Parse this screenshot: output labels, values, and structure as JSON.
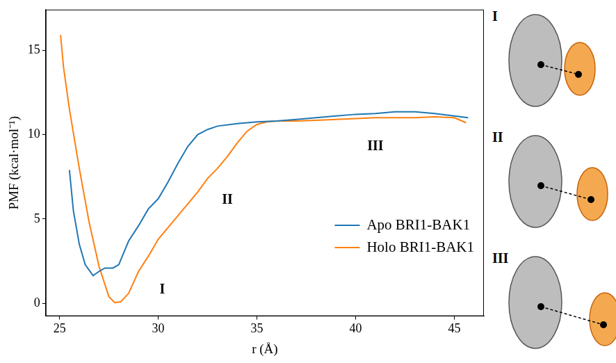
{
  "chart_data": {
    "type": "line",
    "x_label": "r (Å)",
    "y_label": "PMF (kcal·mol⁻¹)",
    "xlim": [
      24.3,
      46.5
    ],
    "xticks": [
      25,
      30,
      35,
      40,
      45
    ],
    "ylim": [
      -0.75,
      17.4
    ],
    "yticks": [
      0,
      5,
      10,
      15
    ],
    "grid": false,
    "legend": "center right",
    "series": [
      {
        "name": "Apo BRI1-BAK1",
        "color": "#1f77b4",
        "x": [
          25.5,
          25.7,
          26.0,
          26.3,
          26.7,
          27.0,
          27.3,
          27.7,
          28.0,
          28.5,
          29.0,
          29.5,
          30.0,
          30.5,
          31.0,
          31.5,
          32.0,
          32.5,
          33.0,
          34.0,
          35.0,
          36.0,
          37.0,
          38.0,
          39.0,
          40.0,
          41.0,
          42.0,
          43.0,
          44.0,
          45.0,
          45.7
        ],
        "values": [
          7.9,
          5.5,
          3.5,
          2.3,
          1.65,
          1.9,
          2.1,
          2.1,
          2.3,
          3.7,
          4.6,
          5.6,
          6.2,
          7.2,
          8.3,
          9.3,
          10.0,
          10.3,
          10.5,
          10.65,
          10.75,
          10.8,
          10.9,
          11.0,
          11.1,
          11.2,
          11.25,
          11.35,
          11.35,
          11.25,
          11.1,
          11.0
        ]
      },
      {
        "name": "Holo BRI1-BAK1",
        "color": "#ff7f0e",
        "x": [
          25.05,
          25.2,
          25.5,
          26.0,
          26.5,
          27.0,
          27.5,
          27.8,
          28.1,
          28.5,
          29.0,
          29.5,
          30.0,
          30.5,
          31.0,
          31.5,
          32.0,
          32.5,
          33.0,
          33.5,
          34.0,
          34.5,
          35.0,
          35.5,
          36.0,
          37.0,
          38.0,
          39.0,
          40.0,
          41.0,
          42.0,
          43.0,
          44.0,
          45.0,
          45.6
        ],
        "values": [
          15.9,
          14.0,
          11.5,
          8.0,
          4.8,
          2.2,
          0.4,
          0.05,
          0.1,
          0.6,
          1.9,
          2.8,
          3.8,
          4.5,
          5.2,
          5.9,
          6.6,
          7.4,
          8.0,
          8.7,
          9.5,
          10.2,
          10.6,
          10.75,
          10.8,
          10.8,
          10.85,
          10.9,
          10.95,
          11.0,
          11.0,
          11.0,
          11.05,
          11.0,
          10.7
        ]
      }
    ],
    "annotations": [
      {
        "text": "I",
        "x": 30.2,
        "y": 0.8
      },
      {
        "text": "II",
        "x": 33.5,
        "y": 6.1
      },
      {
        "text": "III",
        "x": 41.0,
        "y": 9.3
      }
    ],
    "side_panels": [
      "I",
      "II",
      "III"
    ]
  }
}
